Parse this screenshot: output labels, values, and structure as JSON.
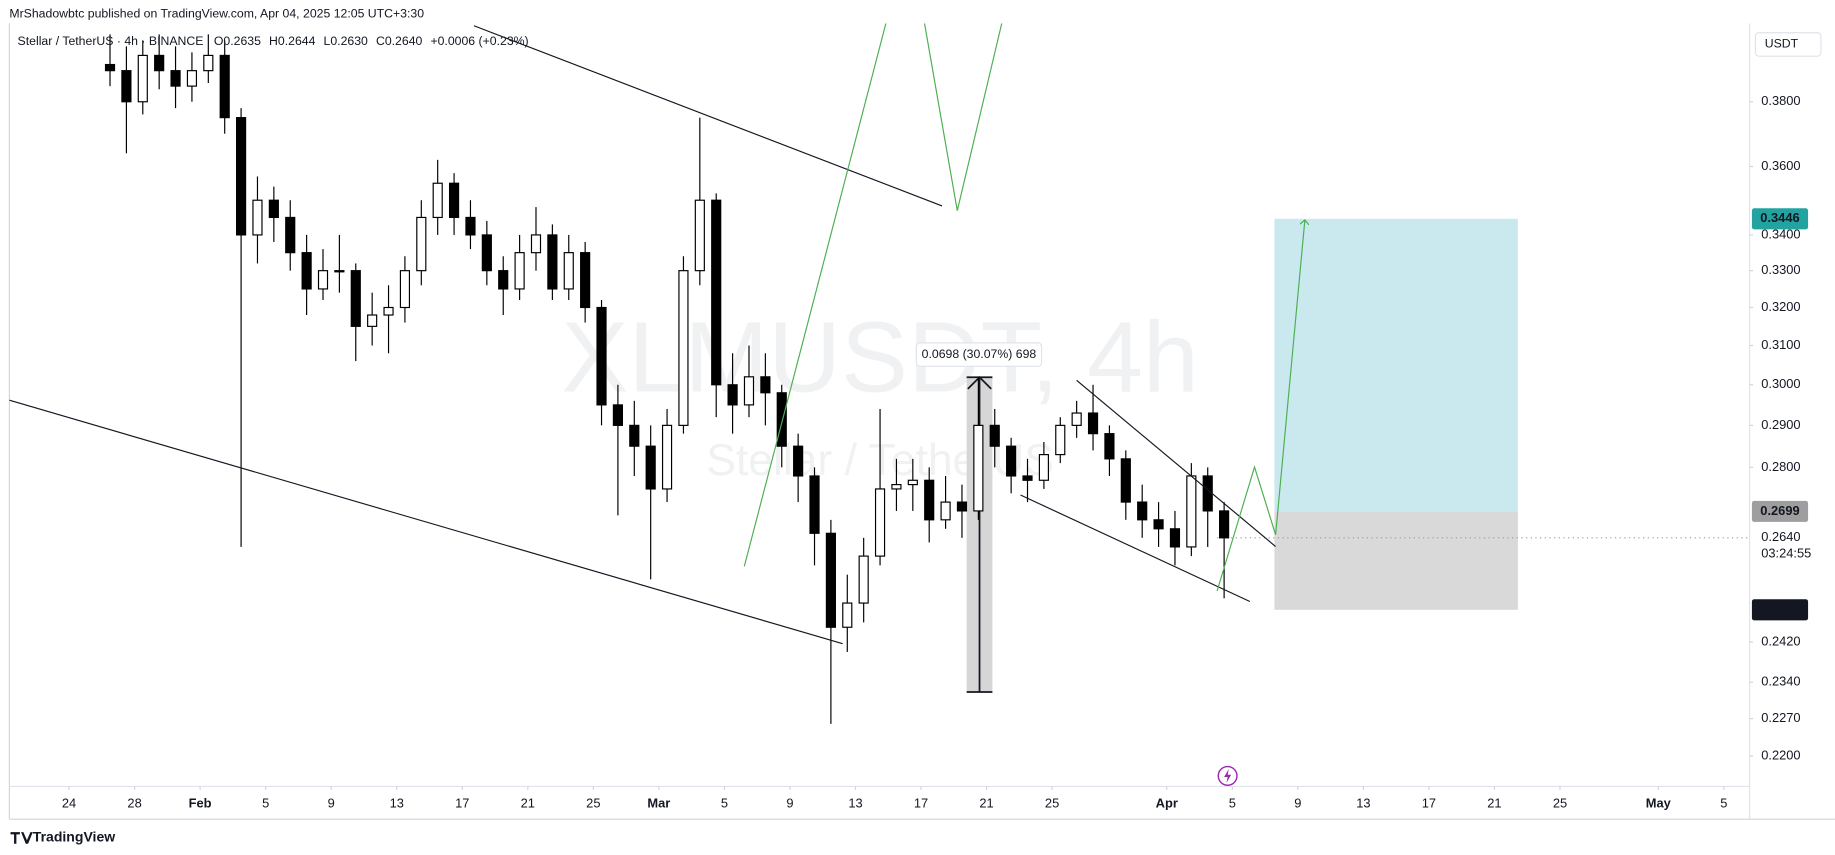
{
  "header": {
    "byline": "MrShadowbtc published on TradingView.com, Apr 04, 2025 12:05 UTC+3:30",
    "symbol": "Stellar / TetherUS · 4h · BINANCE",
    "ohlc": [
      "O0.2635",
      "H0.2644",
      "L0.2630",
      "C0.2640",
      "+0.0006 (+0.23%)"
    ],
    "watermark": "XLMUSDT, 4h",
    "watermark_sub": "Stellar / TetherUS",
    "footer": "TradingView"
  },
  "chart_data": {
    "type": "candlestick",
    "currency": "USDT",
    "log_scale": true,
    "grid": false,
    "up_color": "#ffffff",
    "down_color": "#000000",
    "wick_color": "#000000",
    "xlim": [
      "2025-01-20T08:34:00Z",
      "2025-05-06T13:43:00Z"
    ],
    "ylim": [
      0.2145,
      0.4057
    ],
    "xticks": [
      {
        "value": "2025-01-24",
        "label": "24"
      },
      {
        "value": "2025-01-28",
        "label": "28"
      },
      {
        "value": "2025-02-01",
        "label": "Feb"
      },
      {
        "value": "2025-02-05",
        "label": "5"
      },
      {
        "value": "2025-02-09",
        "label": "9"
      },
      {
        "value": "2025-02-13",
        "label": "13"
      },
      {
        "value": "2025-02-17",
        "label": "17"
      },
      {
        "value": "2025-02-21",
        "label": "21"
      },
      {
        "value": "2025-02-25",
        "label": "25"
      },
      {
        "value": "2025-03-01",
        "label": "Mar"
      },
      {
        "value": "2025-03-05",
        "label": "5"
      },
      {
        "value": "2025-03-09",
        "label": "9"
      },
      {
        "value": "2025-03-13",
        "label": "13"
      },
      {
        "value": "2025-03-17",
        "label": "17"
      },
      {
        "value": "2025-03-21",
        "label": "21"
      },
      {
        "value": "2025-03-25",
        "label": "25"
      },
      {
        "value": "2025-04-01",
        "label": "Apr"
      },
      {
        "value": "2025-04-05",
        "label": "5"
      },
      {
        "value": "2025-04-09",
        "label": "9"
      },
      {
        "value": "2025-04-13",
        "label": "13"
      },
      {
        "value": "2025-04-17",
        "label": "17"
      },
      {
        "value": "2025-04-21",
        "label": "21"
      },
      {
        "value": "2025-04-25",
        "label": "25"
      },
      {
        "value": "2025-05-01",
        "label": "May"
      },
      {
        "value": "2025-05-05",
        "label": "5"
      }
    ],
    "yticks": [
      {
        "value": 0.38,
        "label": "0.3800"
      },
      {
        "value": 0.36,
        "label": "0.3600"
      },
      {
        "value": 0.34,
        "label": "0.3400"
      },
      {
        "value": 0.33,
        "label": "0.3300"
      },
      {
        "value": 0.32,
        "label": "0.3200"
      },
      {
        "value": 0.31,
        "label": "0.3100"
      },
      {
        "value": 0.3,
        "label": "0.3000"
      },
      {
        "value": 0.29,
        "label": "0.2900"
      },
      {
        "value": 0.28,
        "label": "0.2800"
      },
      {
        "value": 0.242,
        "label": "0.2420"
      },
      {
        "value": 0.234,
        "label": "0.2340"
      },
      {
        "value": 0.227,
        "label": "0.2270"
      },
      {
        "value": 0.22,
        "label": "0.2200"
      }
    ],
    "last_price": {
      "value": 0.264,
      "label": "0.2640",
      "countdown": "03:24:55",
      "color": "#9598a1"
    },
    "position": {
      "target": {
        "value": 0.3446,
        "label": "0.3446",
        "color": "#22a39f"
      },
      "entry": {
        "value": 0.2699,
        "label": "0.2699",
        "color": "#9e9e9e"
      },
      "stop": {
        "value": 0.2486,
        "label": "0.2486",
        "color": "#131722"
      },
      "profit_color": "#c9e9ee",
      "loss_color": "#d9d9d9"
    },
    "measure": {
      "from": 0.2321,
      "to": 0.3019,
      "label": "0.0698 (30.07%) 698"
    },
    "x": [
      "2025-01-26",
      "2025-01-27",
      "2025-01-28",
      "2025-01-29",
      "2025-01-30",
      "2025-01-31",
      "2025-02-01",
      "2025-02-02",
      "2025-02-03",
      "2025-02-04",
      "2025-02-05",
      "2025-02-06",
      "2025-02-07",
      "2025-02-08",
      "2025-02-09",
      "2025-02-10",
      "2025-02-11",
      "2025-02-12",
      "2025-02-13",
      "2025-02-14",
      "2025-02-15",
      "2025-02-16",
      "2025-02-17",
      "2025-02-18",
      "2025-02-19",
      "2025-02-20",
      "2025-02-21",
      "2025-02-22",
      "2025-02-23",
      "2025-02-24",
      "2025-02-25",
      "2025-02-26",
      "2025-02-27",
      "2025-02-28",
      "2025-03-01",
      "2025-03-02",
      "2025-03-03",
      "2025-03-04",
      "2025-03-05",
      "2025-03-06",
      "2025-03-07",
      "2025-03-08",
      "2025-03-09",
      "2025-03-10",
      "2025-03-11",
      "2025-03-12",
      "2025-03-13",
      "2025-03-14",
      "2025-03-15",
      "2025-03-16",
      "2025-03-17",
      "2025-03-18",
      "2025-03-19",
      "2025-03-20",
      "2025-03-21",
      "2025-03-22",
      "2025-03-23",
      "2025-03-24",
      "2025-03-25",
      "2025-03-26",
      "2025-03-27",
      "2025-03-28",
      "2025-03-29",
      "2025-03-30",
      "2025-03-31",
      "2025-04-01",
      "2025-04-02",
      "2025-04-03",
      "2025-04-04"
    ],
    "open": [
      0.392,
      0.39,
      0.38,
      0.395,
      0.39,
      0.385,
      0.39,
      0.395,
      0.375,
      0.34,
      0.35,
      0.345,
      0.335,
      0.325,
      0.33,
      0.33,
      0.315,
      0.318,
      0.32,
      0.33,
      0.345,
      0.355,
      0.345,
      0.34,
      0.33,
      0.325,
      0.335,
      0.34,
      0.325,
      0.335,
      0.32,
      0.295,
      0.29,
      0.285,
      0.275,
      0.29,
      0.33,
      0.35,
      0.3,
      0.295,
      0.302,
      0.298,
      0.285,
      0.278,
      0.265,
      0.245,
      0.25,
      0.26,
      0.275,
      0.276,
      0.277,
      0.268,
      0.272,
      0.27,
      0.29,
      0.285,
      0.278,
      0.277,
      0.283,
      0.29,
      0.293,
      0.288,
      0.282,
      0.272,
      0.268,
      0.266,
      0.262,
      0.278,
      0.27
    ],
    "high": [
      0.402,
      0.398,
      0.4,
      0.402,
      0.398,
      0.396,
      0.402,
      0.4,
      0.378,
      0.357,
      0.354,
      0.35,
      0.34,
      0.336,
      0.34,
      0.332,
      0.324,
      0.326,
      0.334,
      0.35,
      0.362,
      0.358,
      0.35,
      0.344,
      0.334,
      0.34,
      0.348,
      0.343,
      0.34,
      0.338,
      0.322,
      0.3,
      0.296,
      0.29,
      0.294,
      0.334,
      0.375,
      0.352,
      0.308,
      0.31,
      0.308,
      0.3,
      0.288,
      0.28,
      0.268,
      0.256,
      0.264,
      0.294,
      0.282,
      0.282,
      0.28,
      0.278,
      0.276,
      0.302,
      0.294,
      0.287,
      0.282,
      0.286,
      0.292,
      0.296,
      0.3,
      0.29,
      0.284,
      0.276,
      0.272,
      0.27,
      0.281,
      0.28,
      0.272
    ],
    "low": [
      0.385,
      0.364,
      0.376,
      0.384,
      0.378,
      0.38,
      0.386,
      0.37,
      0.262,
      0.332,
      0.338,
      0.33,
      0.318,
      0.322,
      0.324,
      0.306,
      0.31,
      0.308,
      0.316,
      0.326,
      0.34,
      0.34,
      0.336,
      0.326,
      0.318,
      0.322,
      0.33,
      0.322,
      0.322,
      0.316,
      0.29,
      0.269,
      0.278,
      0.255,
      0.272,
      0.288,
      0.326,
      0.292,
      0.288,
      0.292,
      0.29,
      0.28,
      0.272,
      0.258,
      0.226,
      0.24,
      0.246,
      0.258,
      0.27,
      0.27,
      0.263,
      0.266,
      0.264,
      0.268,
      0.28,
      0.274,
      0.272,
      0.275,
      0.281,
      0.287,
      0.284,
      0.278,
      0.268,
      0.264,
      0.262,
      0.258,
      0.26,
      0.262,
      0.251
    ],
    "close": [
      0.39,
      0.38,
      0.395,
      0.39,
      0.385,
      0.39,
      0.395,
      0.375,
      0.34,
      0.35,
      0.345,
      0.335,
      0.325,
      0.33,
      0.33,
      0.315,
      0.318,
      0.32,
      0.33,
      0.345,
      0.355,
      0.345,
      0.34,
      0.33,
      0.325,
      0.335,
      0.34,
      0.325,
      0.335,
      0.32,
      0.295,
      0.29,
      0.285,
      0.275,
      0.29,
      0.33,
      0.35,
      0.3,
      0.295,
      0.302,
      0.298,
      0.285,
      0.278,
      0.265,
      0.245,
      0.25,
      0.26,
      0.275,
      0.276,
      0.277,
      0.268,
      0.272,
      0.27,
      0.29,
      0.285,
      0.278,
      0.277,
      0.283,
      0.29,
      0.293,
      0.288,
      0.282,
      0.272,
      0.268,
      0.266,
      0.262,
      0.278,
      0.27,
      0.264
    ]
  }
}
